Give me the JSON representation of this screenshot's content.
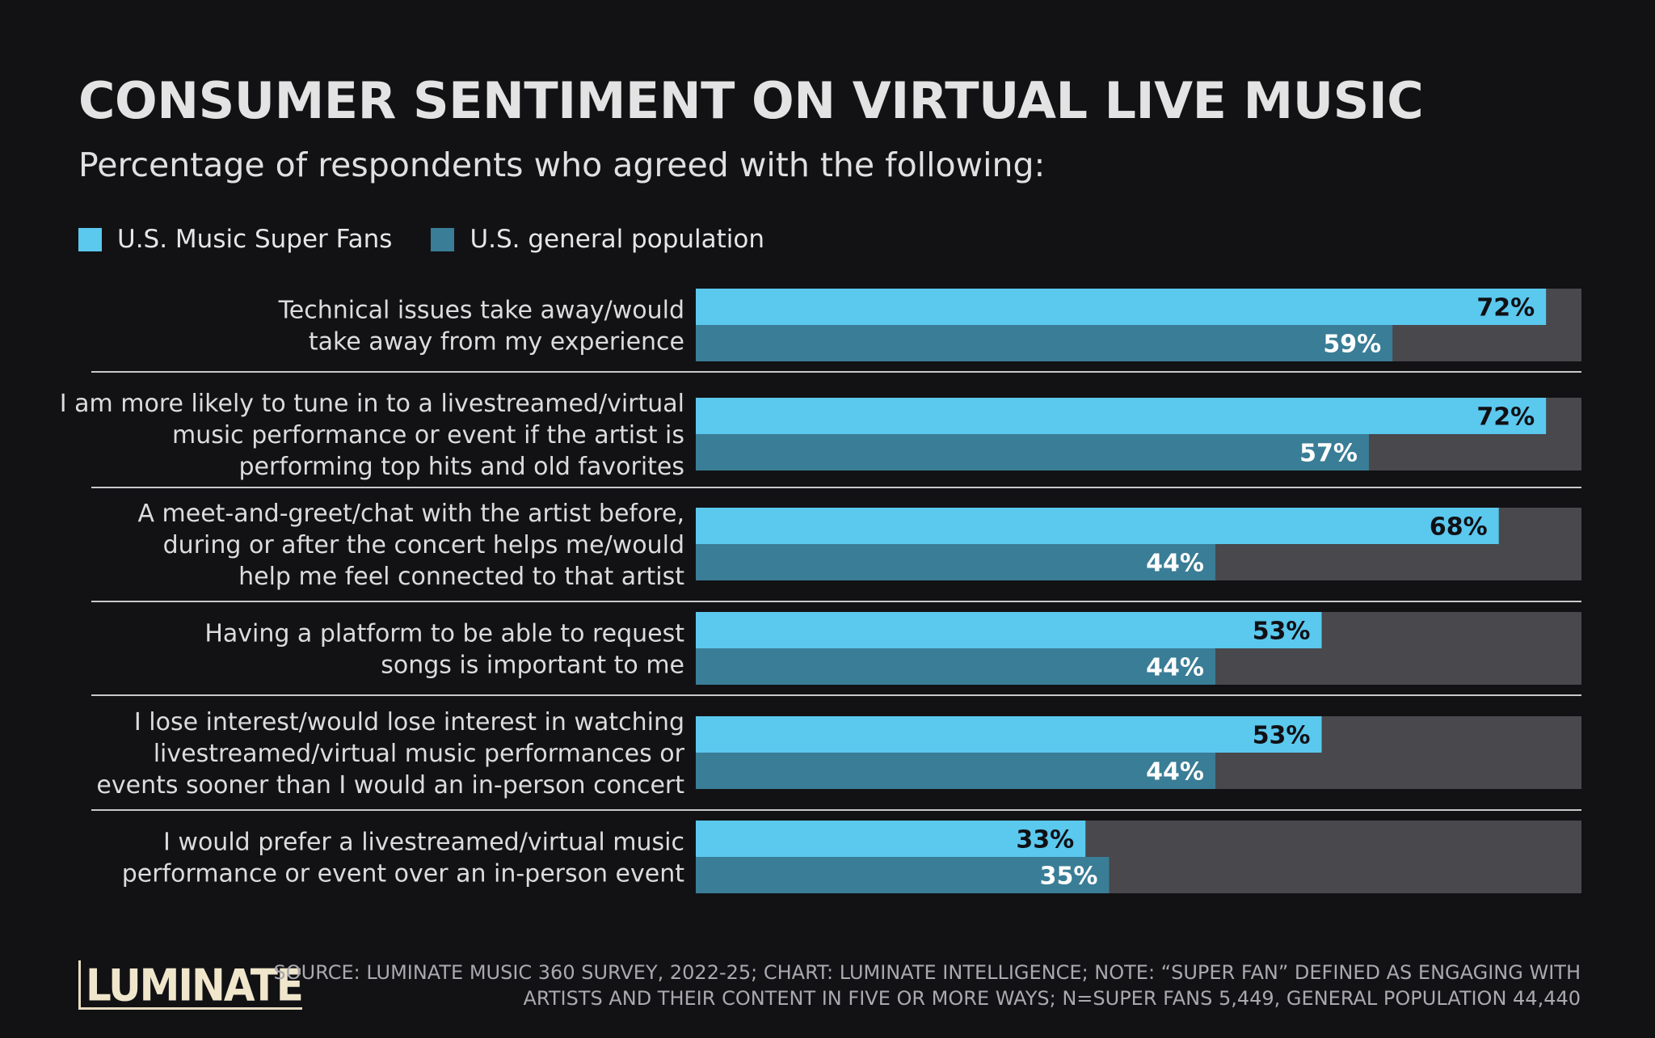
{
  "title": "CONSUMER SENTIMENT ON VIRTUAL LIVE MUSIC",
  "subtitle": "Percentage of respondents who agreed with the following:",
  "legend": {
    "superfans": "U.S. Music Super Fans",
    "general": "U.S. general population"
  },
  "colors": {
    "superfans": "#5bc8ee",
    "general": "#3a7d96",
    "track": "#48484d",
    "divider": "#c9c9c9"
  },
  "chart_data": {
    "type": "bar",
    "orientation": "horizontal",
    "xlim": [
      0,
      100
    ],
    "categories": [
      [
        "Technical issues take away/would",
        "take away from my experience"
      ],
      [
        "I am more likely to tune in to a livestreamed/virtual",
        "music performance or event if the artist is",
        "performing top hits and old favorites"
      ],
      [
        "A meet-and-greet/chat with the artist before,",
        "during or after the concert helps me/would",
        "help me feel connected to that artist"
      ],
      [
        "Having a platform to be able to request",
        "songs is important to me"
      ],
      [
        "I lose interest/would lose interest in watching",
        "livestreamed/virtual music performances or",
        "events sooner than I would an in-person concert"
      ],
      [
        "I would prefer a livestreamed/virtual music",
        "performance or event over an in-person event"
      ]
    ],
    "series": [
      {
        "name": "U.S. Music Super Fans",
        "values": [
          72,
          72,
          68,
          53,
          53,
          33
        ],
        "labels": [
          "72%",
          "72%",
          "68%",
          "53%",
          "53%",
          "33%"
        ]
      },
      {
        "name": "U.S. general population",
        "values": [
          59,
          57,
          44,
          44,
          44,
          35
        ],
        "labels": [
          "59%",
          "57%",
          "44%",
          "44%",
          "44%",
          "35%"
        ]
      }
    ],
    "legend_position": "top-left",
    "grid": false
  },
  "logo": "LUMINATE",
  "source": "SOURCE: LUMINATE MUSIC 360 SURVEY, 2022-25; CHART: LUMINATE INTELLIGENCE; NOTE: “SUPER FAN” DEFINED AS ENGAGING WITH ARTISTS AND THEIR CONTENT IN FIVE OR MORE WAYS; N=SUPER FANS 5,449, GENERAL POPULATION 44,440"
}
